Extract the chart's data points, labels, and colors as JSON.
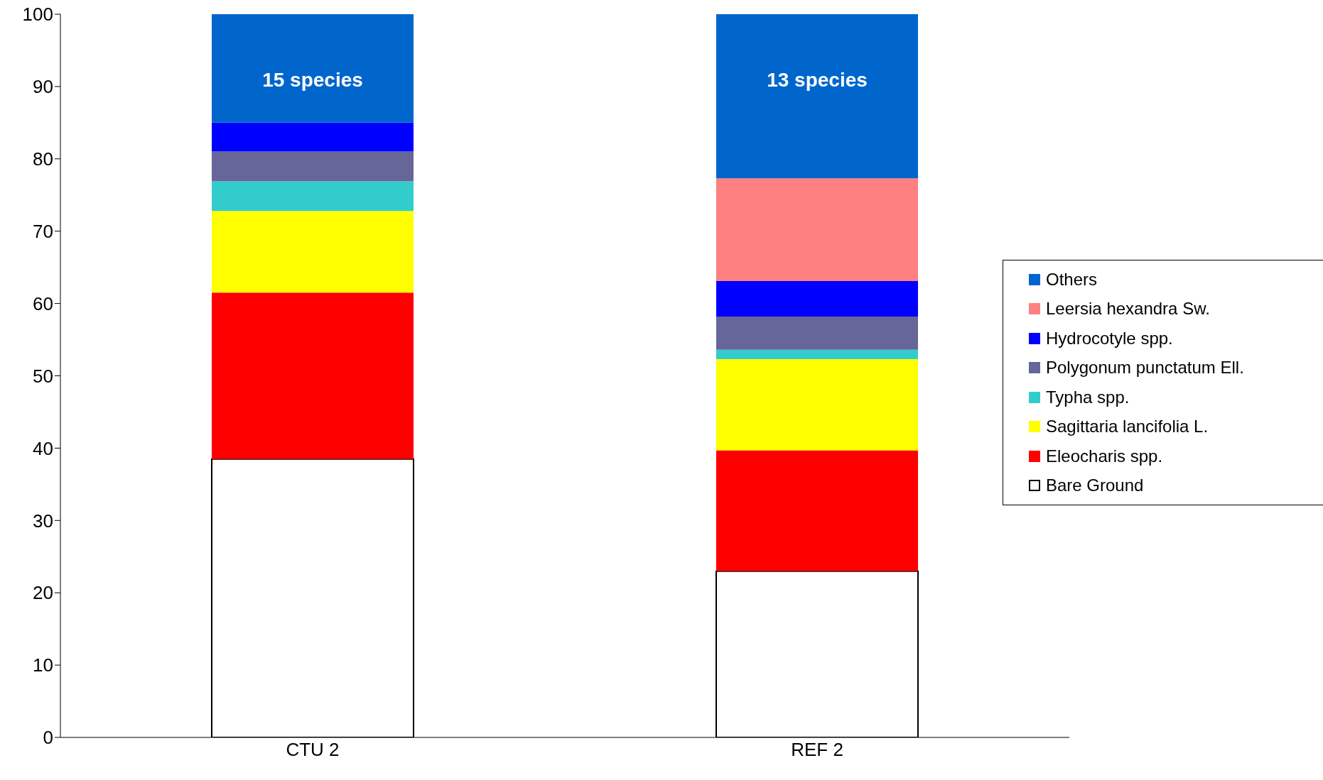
{
  "chart_data": {
    "type": "bar",
    "stacked": true,
    "categories": [
      "CTU 2",
      "REF 2"
    ],
    "series": [
      {
        "name": "Bare Ground",
        "color": "#ffffff",
        "values": [
          38.5,
          23.0
        ]
      },
      {
        "name": "Eleocharis spp.",
        "color": "#ff0000",
        "values": [
          23.0,
          16.7
        ]
      },
      {
        "name": "Sagittaria lancifolia L.",
        "color": "#ffff00",
        "values": [
          11.3,
          12.6
        ]
      },
      {
        "name": "Typha spp.",
        "color": "#33cccc",
        "values": [
          4.1,
          1.3
        ]
      },
      {
        "name": "Polygonum punctatum Ell.",
        "color": "#666699",
        "values": [
          4.1,
          4.6
        ]
      },
      {
        "name": "Hydrocotyle spp.",
        "color": "#0000ff",
        "values": [
          4.0,
          4.9
        ]
      },
      {
        "name": "Leersia hexandra Sw.",
        "color": "#ff8080",
        "values": [
          0,
          14.2
        ]
      },
      {
        "name": "Others",
        "color": "#0066cc",
        "values": [
          15.0,
          22.7
        ]
      }
    ],
    "ylim": [
      0,
      100
    ],
    "yticks": [
      0,
      10,
      20,
      30,
      40,
      50,
      60,
      70,
      80,
      90,
      100
    ],
    "annotations": [
      "15 species",
      "13 species"
    ],
    "legend": "right"
  }
}
